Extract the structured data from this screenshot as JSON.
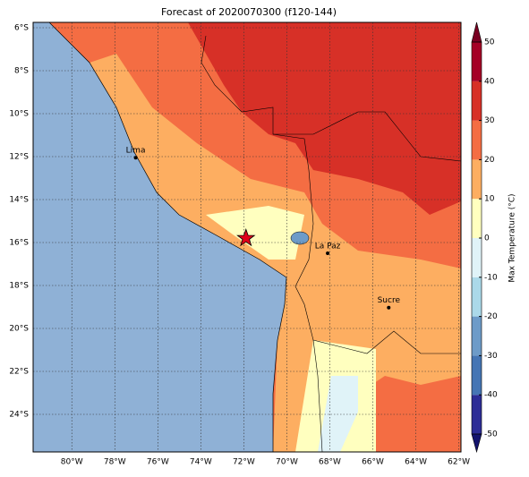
{
  "title": "Forecast of 2020070300 (f120-144)",
  "map": {
    "lon_range": [
      -81.8,
      -61.9
    ],
    "lat_range": [
      -5.75,
      -25.75
    ],
    "lon_ticks": [
      {
        "value": -80,
        "label": "80°W"
      },
      {
        "value": -78,
        "label": "78°W"
      },
      {
        "value": -76,
        "label": "76°W"
      },
      {
        "value": -74,
        "label": "74°W"
      },
      {
        "value": -72,
        "label": "72°W"
      },
      {
        "value": -70,
        "label": "70°W"
      },
      {
        "value": -68,
        "label": "68°W"
      },
      {
        "value": -66,
        "label": "66°W"
      },
      {
        "value": -64,
        "label": "64°W"
      },
      {
        "value": -62,
        "label": "62°W"
      }
    ],
    "lat_ticks": [
      {
        "value": -6,
        "label": "6°S"
      },
      {
        "value": -8,
        "label": "8°S"
      },
      {
        "value": -10,
        "label": "10°S"
      },
      {
        "value": -12,
        "label": "12°S"
      },
      {
        "value": -14,
        "label": "14°S"
      },
      {
        "value": -16,
        "label": "16°S"
      },
      {
        "value": -18,
        "label": "18°S"
      },
      {
        "value": -20,
        "label": "20°S"
      },
      {
        "value": -22,
        "label": "22°S"
      },
      {
        "value": -24,
        "label": "24°S"
      }
    ],
    "cities": [
      {
        "name": "Lima",
        "lon": -77.03,
        "lat": -12.05
      },
      {
        "name": "La Paz",
        "lon": -68.1,
        "lat": -16.5
      },
      {
        "name": "Sucre",
        "lon": -65.26,
        "lat": -19.03
      }
    ],
    "star": {
      "lon": -71.9,
      "lat": -15.8
    }
  },
  "colorbar": {
    "label": "Max Temperature (°C)",
    "range": [
      -50,
      50
    ],
    "ticks": [
      -50,
      -40,
      -30,
      -20,
      -10,
      0,
      10,
      20,
      30,
      40,
      50
    ],
    "bounds": [
      -50,
      -40,
      -30,
      -20,
      -10,
      0,
      10,
      20,
      30,
      40,
      50
    ],
    "colors": [
      "#2c2c96",
      "#4575b4",
      "#6d9bc8",
      "#abd9e9",
      "#e0f3f8",
      "#ffffbf",
      "#fdae61",
      "#f46d43",
      "#d73027",
      "#a50026"
    ],
    "under_color": "#14146e",
    "over_color": "#7a0022"
  }
}
